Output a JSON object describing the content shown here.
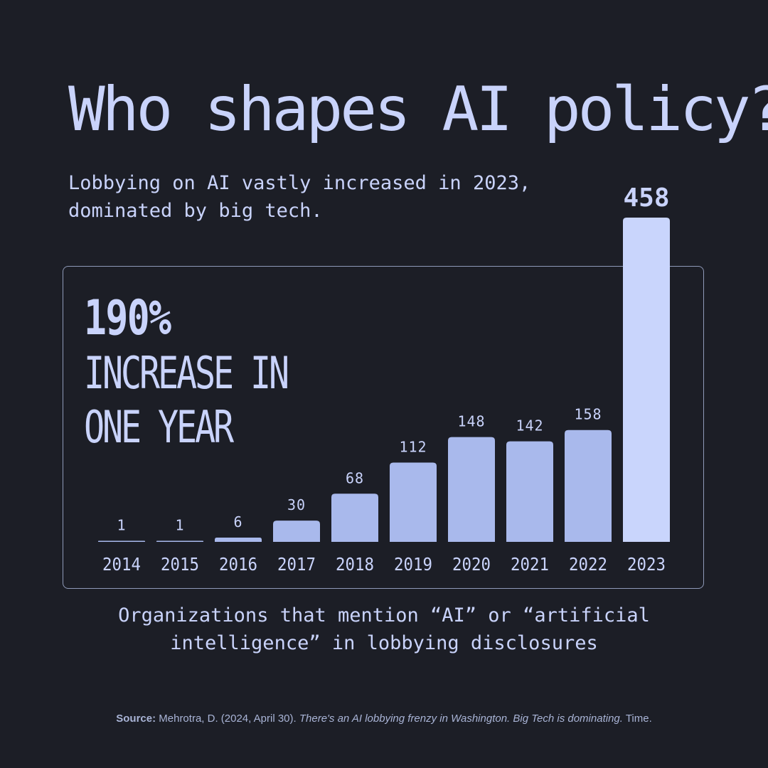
{
  "title": "Who shapes AI policy?",
  "subtitle": {
    "line1": "Lobbying on AI vastly increased in 2023,",
    "line2": "dominated by big tech."
  },
  "stat": {
    "value": "190%",
    "line1": "INCREASE IN",
    "line2": "ONE YEAR"
  },
  "caption": {
    "line1": "Organizations that mention “AI” or “artificial",
    "line2": "intelligence” in lobbying disclosures"
  },
  "source": {
    "label": "Source:",
    "text1": " Mehrotra, D. (2024, April 30). ",
    "title": "There's an AI lobbying frenzy in Washington. Big Tech is dominating.",
    "text2": " Time."
  },
  "colors": {
    "background": "#1c1e26",
    "text": "#c9d3fb",
    "bar": "#a9b9ec",
    "bar_highlight": "#c9d5fc",
    "panel_border": "#8f9ab8"
  },
  "chart_data": {
    "type": "bar",
    "categories": [
      "2014",
      "2015",
      "2016",
      "2017",
      "2018",
      "2019",
      "2020",
      "2021",
      "2022",
      "2023"
    ],
    "values": [
      1,
      1,
      6,
      30,
      68,
      112,
      148,
      142,
      158,
      458
    ],
    "highlight": "2023",
    "title": "Who shapes AI policy?",
    "xlabel": "",
    "ylabel": "",
    "ylim": [
      0,
      458
    ],
    "grid": false,
    "legend": "none"
  }
}
